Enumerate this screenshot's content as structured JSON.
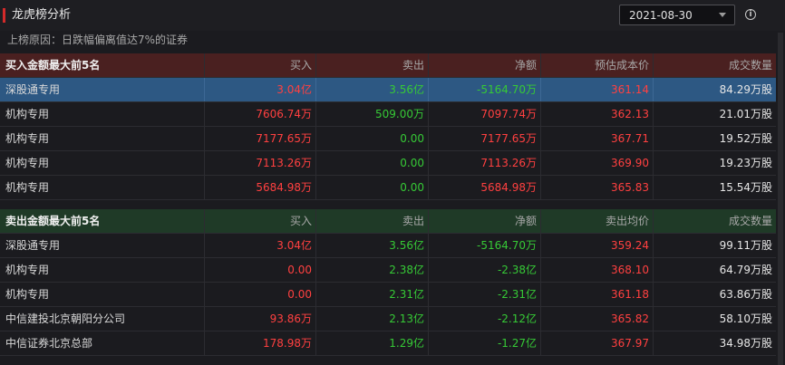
{
  "header": {
    "title": "龙虎榜分析",
    "date": "2021-08-30",
    "info_icon": "info-circle-icon"
  },
  "reason": "上榜原因：日跌幅偏离值达7%的证券",
  "colors": {
    "up": "#ff4040",
    "down": "#36c936",
    "selected_row": "#2d5883"
  },
  "buy_table": {
    "headers": [
      "买入金额最大前5名",
      "买入",
      "卖出",
      "净额",
      "预估成本价",
      "成交数量"
    ],
    "rows": [
      [
        "深股通专用",
        "3.04亿",
        "3.56亿",
        "-5164.70万",
        "361.14",
        "84.29万股"
      ],
      [
        "机构专用",
        "7606.74万",
        "509.00万",
        "7097.74万",
        "362.13",
        "21.01万股"
      ],
      [
        "机构专用",
        "7177.65万",
        "0.00",
        "7177.65万",
        "367.71",
        "19.52万股"
      ],
      [
        "机构专用",
        "7113.26万",
        "0.00",
        "7113.26万",
        "369.90",
        "19.23万股"
      ],
      [
        "机构专用",
        "5684.98万",
        "0.00",
        "5684.98万",
        "365.83",
        "15.54万股"
      ]
    ]
  },
  "sell_table": {
    "headers": [
      "卖出金额最大前5名",
      "买入",
      "卖出",
      "净额",
      "卖出均价",
      "成交数量"
    ],
    "rows": [
      [
        "深股通专用",
        "3.04亿",
        "3.56亿",
        "-5164.70万",
        "359.24",
        "99.11万股"
      ],
      [
        "机构专用",
        "0.00",
        "2.38亿",
        "-2.38亿",
        "368.10",
        "64.79万股"
      ],
      [
        "机构专用",
        "0.00",
        "2.31亿",
        "-2.31亿",
        "361.18",
        "63.86万股"
      ],
      [
        "中信建投北京朝阳分公司",
        "93.86万",
        "2.13亿",
        "-2.12亿",
        "365.82",
        "58.10万股"
      ],
      [
        "中信证券北京总部",
        "178.98万",
        "1.29亿",
        "-1.27亿",
        "367.97",
        "34.98万股"
      ]
    ]
  }
}
